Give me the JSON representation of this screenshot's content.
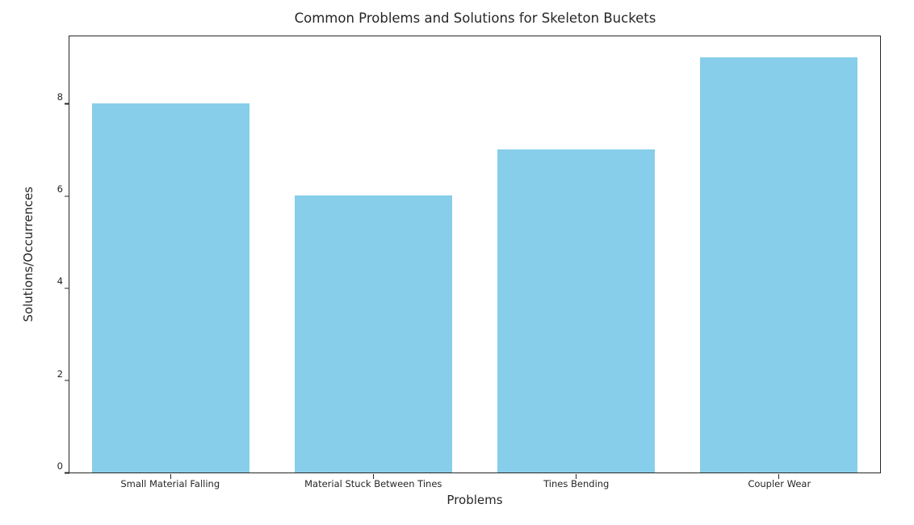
{
  "chart_data": {
    "type": "bar",
    "title": "Common Problems and Solutions for Skeleton Buckets",
    "xlabel": "Problems",
    "ylabel": "Solutions/Occurrences",
    "categories": [
      "Small Material Falling",
      "Material Stuck Between Tines",
      "Tines Bending",
      "Coupler Wear"
    ],
    "values": [
      8,
      6,
      7,
      9
    ],
    "yticks": [
      0,
      2,
      4,
      6,
      8
    ],
    "ylim": [
      0,
      9.45
    ],
    "bar_color": "#87CEEB",
    "background_color": "#ffffff",
    "grid": false,
    "legend": "none"
  }
}
